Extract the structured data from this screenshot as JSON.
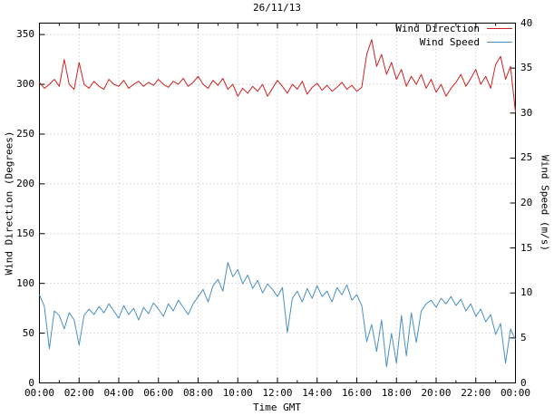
{
  "title": "26/11/13",
  "xlabel": "Time GMT",
  "ylabel_left": "Wind Direction (Degrees)",
  "ylabel_right": "Wind Speed (m/s)",
  "legend": [
    {
      "label": "Wind Direction",
      "color": "#cc2222"
    },
    {
      "label": "Wind Speed",
      "color": "#4a90c4"
    }
  ],
  "colors": {
    "wind_direction_line": "#cc2222",
    "wind_speed_line": "#4a90c4",
    "grid": "#bbbbbb",
    "border": "#000000"
  },
  "axes": {
    "x_tick_labels": [
      "00:00",
      "02:00",
      "04:00",
      "06:00",
      "08:00",
      "10:00",
      "12:00",
      "14:00",
      "16:00",
      "18:00",
      "20:00",
      "22:00",
      "00:00"
    ],
    "x_tick_hours": [
      0,
      2,
      4,
      6,
      8,
      10,
      12,
      14,
      16,
      18,
      20,
      22,
      24
    ],
    "y_left_ticks": [
      0,
      50,
      100,
      150,
      200,
      250,
      300,
      350
    ],
    "y_left_axis_max": 361.5,
    "y_right_ticks": [
      0,
      5,
      10,
      15,
      20,
      25,
      30,
      35,
      40
    ],
    "y_right_axis_max": 40,
    "grid": "dotted"
  },
  "chart_data": {
    "type": "line",
    "title": "26/11/13",
    "xlabel": "Time GMT",
    "x_unit": "hours GMT",
    "x_range_hours": [
      0,
      24
    ],
    "sample_interval_minutes": 15,
    "grid": "dotted",
    "legend_position": "top-right",
    "series": [
      {
        "name": "Wind Direction",
        "axis": "left",
        "unit": "degrees",
        "color": "#cc2222",
        "ylim": [
          0,
          350
        ],
        "values": [
          302,
          296,
          300,
          305,
          298,
          325,
          300,
          295,
          322,
          300,
          296,
          303,
          298,
          295,
          305,
          300,
          298,
          304,
          296,
          300,
          303,
          298,
          302,
          299,
          305,
          300,
          297,
          303,
          300,
          306,
          298,
          302,
          308,
          300,
          296,
          304,
          299,
          306,
          295,
          300,
          288,
          296,
          291,
          298,
          293,
          300,
          288,
          296,
          304,
          298,
          291,
          300,
          295,
          303,
          290,
          297,
          301,
          294,
          299,
          293,
          297,
          302,
          295,
          299,
          293,
          297,
          330,
          345,
          318,
          330,
          310,
          322,
          305,
          315,
          298,
          308,
          300,
          310,
          296,
          305,
          292,
          300,
          288,
          296,
          302,
          310,
          298,
          306,
          315,
          300,
          308,
          296,
          320,
          328,
          305,
          318,
          272
        ]
      },
      {
        "name": "Wind Speed",
        "axis": "right",
        "unit": "m/s",
        "color": "#4a90c4",
        "ylim": [
          0,
          40
        ],
        "values": [
          9.8,
          8.5,
          3.8,
          8.0,
          7.5,
          6.0,
          7.8,
          7.0,
          4.2,
          7.5,
          8.2,
          7.6,
          8.5,
          7.8,
          8.8,
          8.0,
          7.2,
          8.6,
          7.6,
          8.3,
          7.0,
          8.4,
          7.7,
          8.9,
          8.2,
          7.4,
          8.8,
          8.0,
          9.2,
          8.4,
          7.6,
          8.8,
          9.6,
          10.4,
          9.0,
          10.8,
          11.5,
          10.2,
          13.4,
          11.8,
          12.6,
          11.0,
          12.0,
          10.5,
          11.4,
          10.0,
          11.0,
          10.4,
          9.6,
          10.6,
          5.6,
          9.4,
          10.2,
          9.0,
          10.5,
          9.4,
          10.8,
          9.6,
          10.2,
          9.0,
          10.6,
          9.8,
          10.9,
          9.2,
          9.8,
          8.6,
          4.6,
          6.5,
          3.5,
          7.0,
          1.8,
          5.5,
          2.2,
          7.5,
          3.0,
          7.8,
          4.5,
          8.0,
          8.8,
          9.2,
          8.4,
          9.4,
          8.8,
          9.6,
          8.6,
          9.3,
          8.0,
          8.8,
          7.4,
          8.2,
          6.8,
          7.6,
          5.4,
          6.6,
          2.2,
          6.0,
          4.8
        ]
      }
    ]
  }
}
